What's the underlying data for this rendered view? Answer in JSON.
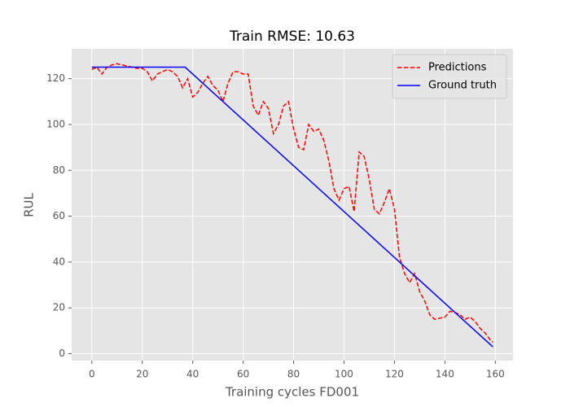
{
  "chart_data": {
    "type": "line",
    "title": "Train RMSE: 10.63",
    "xlabel": "Training cycles FD001",
    "ylabel": "RUL",
    "xlim": [
      -8,
      167
    ],
    "ylim": [
      -3,
      133
    ],
    "xticks": [
      0,
      20,
      40,
      60,
      80,
      100,
      120,
      140,
      160
    ],
    "yticks": [
      0,
      20,
      40,
      60,
      80,
      100,
      120
    ],
    "grid": true,
    "legend": "upper right",
    "series": [
      {
        "name": "Predictions",
        "color": "#ff0000",
        "linestyle": "dashed",
        "x": [
          0,
          2,
          4,
          6,
          8,
          10,
          12,
          14,
          16,
          18,
          20,
          22,
          24,
          26,
          28,
          30,
          32,
          34,
          36,
          38,
          40,
          42,
          44,
          46,
          48,
          50,
          52,
          54,
          56,
          58,
          60,
          62,
          64,
          66,
          68,
          70,
          72,
          74,
          76,
          78,
          80,
          82,
          84,
          86,
          88,
          90,
          92,
          94,
          96,
          98,
          100,
          102,
          104,
          106,
          108,
          110,
          112,
          114,
          116,
          118,
          120,
          122,
          124,
          126,
          128,
          130,
          132,
          134,
          136,
          138,
          140,
          142,
          144,
          146,
          148,
          150,
          152,
          154,
          156,
          158,
          159
        ],
        "values": [
          124,
          125,
          122,
          125,
          126,
          126.5,
          126,
          125.5,
          125,
          124.5,
          124.5,
          123,
          119,
          122,
          123,
          124,
          123,
          121,
          116,
          120,
          112,
          114,
          118,
          121,
          117,
          115,
          110,
          118,
          123,
          123,
          122,
          122,
          108,
          104,
          110,
          107,
          96,
          100,
          108,
          110,
          98,
          90,
          89,
          100,
          97,
          98,
          93,
          84,
          72,
          67,
          72,
          73,
          62,
          88,
          86,
          76,
          63,
          61,
          66,
          72,
          63,
          42,
          35,
          31,
          35,
          27,
          23,
          17,
          15,
          15.5,
          16,
          18.5,
          18,
          17,
          15,
          16,
          14,
          11,
          9,
          6,
          5
        ]
      },
      {
        "name": "Ground truth",
        "color": "#0000ff",
        "linestyle": "solid",
        "x": [
          0,
          37,
          159
        ],
        "values": [
          125,
          125,
          3
        ]
      }
    ]
  }
}
